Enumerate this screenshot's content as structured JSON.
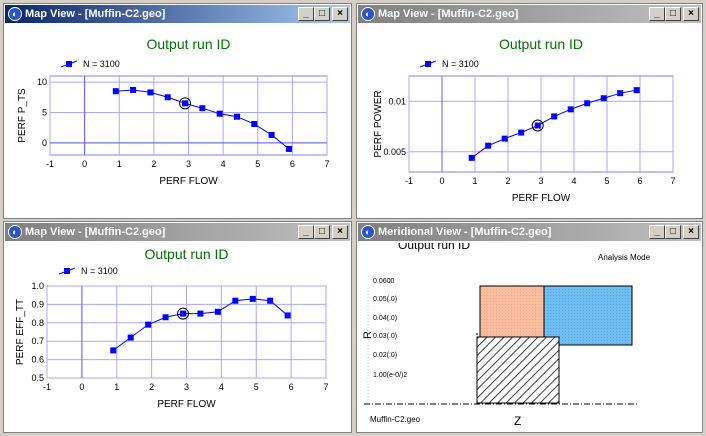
{
  "windows": [
    {
      "title": "Map View - [Muffin-C2.geo]",
      "active": true
    },
    {
      "title": "Map View - [Muffin-C2.geo]",
      "active": false
    },
    {
      "title": "Map View - [Muffin-C2.geo]",
      "active": false
    },
    {
      "title": "Meridional View - [Muffin-C2.geo]",
      "active": false
    }
  ],
  "titlebar_buttons": {
    "minimize": "_",
    "maximize": "□",
    "close": "×"
  },
  "chart_data": [
    {
      "type": "line",
      "title": "Output run ID",
      "legend": "N = 3100",
      "xlabel": "PERF FLOW",
      "ylabel": "PERF P_TS",
      "xlim": [
        -1,
        7
      ],
      "ylim": [
        -2,
        11
      ],
      "xticks": [
        "-1",
        "0",
        "1",
        "2",
        "3",
        "4",
        "5",
        "6",
        "7"
      ],
      "yticks": [
        "0",
        "5",
        "10"
      ],
      "x": [
        0.9,
        1.4,
        1.9,
        2.4,
        2.9,
        3.4,
        3.9,
        4.4,
        4.9,
        5.4,
        5.9
      ],
      "values": [
        8.5,
        8.7,
        8.3,
        7.5,
        6.5,
        5.7,
        4.8,
        4.3,
        3.1,
        1.3,
        -1.0
      ],
      "selected_index": 4,
      "line_color": "#0000ff",
      "title_color": "#007000"
    },
    {
      "type": "line",
      "title": "Output run ID",
      "legend": "N = 3100",
      "xlabel": "PERF FLOW",
      "ylabel": "PERF POWER",
      "xlim": [
        -1,
        7
      ],
      "ylim": [
        0.003,
        0.0125
      ],
      "xticks": [
        "-1",
        "0",
        "1",
        "2",
        "3",
        "4",
        "5",
        "6",
        "7"
      ],
      "yticks": [
        "0.005",
        "0.01"
      ],
      "ytick_values": [
        0.005,
        0.01
      ],
      "x": [
        0.9,
        1.4,
        1.9,
        2.4,
        2.9,
        3.4,
        3.9,
        4.4,
        4.9,
        5.4,
        5.9
      ],
      "values": [
        0.0044,
        0.0056,
        0.0063,
        0.0069,
        0.0076,
        0.0085,
        0.0092,
        0.0098,
        0.0103,
        0.0108,
        0.0111
      ],
      "selected_index": 4,
      "line_color": "#0000ff",
      "title_color": "#007000"
    },
    {
      "type": "line",
      "title": "Output run ID",
      "legend": "N = 3100",
      "xlabel": "PERF FLOW",
      "ylabel": "PERF EFF_TT",
      "xlim": [
        -1,
        7
      ],
      "ylim": [
        0.5,
        1.0
      ],
      "xticks": [
        "-1",
        "0",
        "1",
        "2",
        "3",
        "4",
        "5",
        "6",
        "7"
      ],
      "yticks": [
        "0.5",
        "0.6",
        "0.7",
        "0.8",
        "0.9",
        "1.0"
      ],
      "ytick_values": [
        0.5,
        0.6,
        0.7,
        0.8,
        0.9,
        1.0
      ],
      "x": [
        0.9,
        1.4,
        1.9,
        2.4,
        2.9,
        3.4,
        3.9,
        4.4,
        4.9,
        5.4,
        5.9
      ],
      "values": [
        0.65,
        0.72,
        0.79,
        0.83,
        0.85,
        0.85,
        0.86,
        0.92,
        0.93,
        0.92,
        0.84
      ],
      "selected_index": 4,
      "line_color": "#0000ff",
      "title_color": "#007000"
    }
  ],
  "meridional": {
    "title": "Output run ID",
    "mode": "Analysis Mode",
    "ylabel": "R",
    "xlabel": "Z",
    "footer": "Muffin-C2.geo",
    "yticks": [
      "0.0600",
      "0.05(.0)",
      "0.04(.0)",
      "0.03(.0)",
      "0.02(.0)",
      "1.00(e-0/)2"
    ],
    "colors": {
      "salmon": "#fbbf9f",
      "blue": "#6fbef2",
      "hatch": "#000000"
    }
  }
}
